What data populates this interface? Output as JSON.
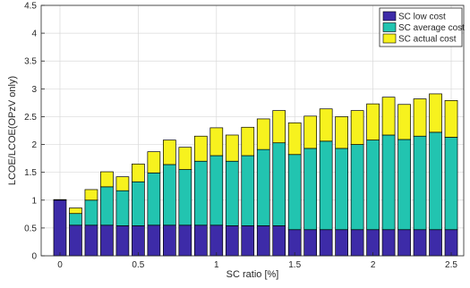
{
  "chart_data": {
    "type": "bar",
    "stacked": true,
    "xlabel": "SC ratio [%]",
    "ylabel": "LCOE/LCOE(OPzV only)",
    "xlim": [
      -0.12,
      2.58
    ],
    "ylim": [
      0,
      4.5
    ],
    "xticks": [
      0,
      0.5,
      1,
      1.5,
      2,
      2.5
    ],
    "xtick_labels": [
      "0",
      "0.5",
      "1",
      "1.5",
      "2",
      "2.5"
    ],
    "yticks": [
      0,
      0.5,
      1,
      1.5,
      2,
      2.5,
      3,
      3.5,
      4,
      4.5
    ],
    "ytick_labels": [
      "0",
      "0.5",
      "1",
      "1.5",
      "2",
      "2.5",
      "3",
      "3.5",
      "4",
      "4.5"
    ],
    "grid": true,
    "legend_position": "top-right",
    "bar_width": 0.08,
    "x": [
      0,
      0.1,
      0.2,
      0.3,
      0.4,
      0.5,
      0.6,
      0.7,
      0.8,
      0.9,
      1.0,
      1.1,
      1.2,
      1.3,
      1.4,
      1.5,
      1.6,
      1.7,
      1.8,
      1.9,
      2.0,
      2.1,
      2.2,
      2.3,
      2.4,
      2.5
    ],
    "series": [
      {
        "name": "SC low cost",
        "color": "#3d2ba8",
        "values": [
          1.0,
          0.55,
          0.55,
          0.55,
          0.54,
          0.54,
          0.55,
          0.55,
          0.55,
          0.55,
          0.55,
          0.54,
          0.54,
          0.54,
          0.54,
          0.47,
          0.47,
          0.47,
          0.47,
          0.47,
          0.47,
          0.47,
          0.47,
          0.47,
          0.47,
          0.47
        ]
      },
      {
        "name": "SC average cost",
        "color": "#22c4b0",
        "values": [
          0.0,
          0.21,
          0.45,
          0.69,
          0.63,
          0.79,
          0.94,
          1.09,
          1.0,
          1.15,
          1.25,
          1.16,
          1.26,
          1.37,
          1.49,
          1.35,
          1.46,
          1.59,
          1.46,
          1.53,
          1.61,
          1.7,
          1.62,
          1.68,
          1.75,
          1.66
        ]
      },
      {
        "name": "SC actual cost",
        "color": "#f7f21e",
        "values": [
          0.01,
          0.1,
          0.19,
          0.27,
          0.25,
          0.32,
          0.38,
          0.44,
          0.4,
          0.45,
          0.5,
          0.47,
          0.51,
          0.55,
          0.58,
          0.57,
          0.58,
          0.58,
          0.57,
          0.61,
          0.65,
          0.68,
          0.63,
          0.67,
          0.69,
          0.66
        ]
      }
    ]
  }
}
